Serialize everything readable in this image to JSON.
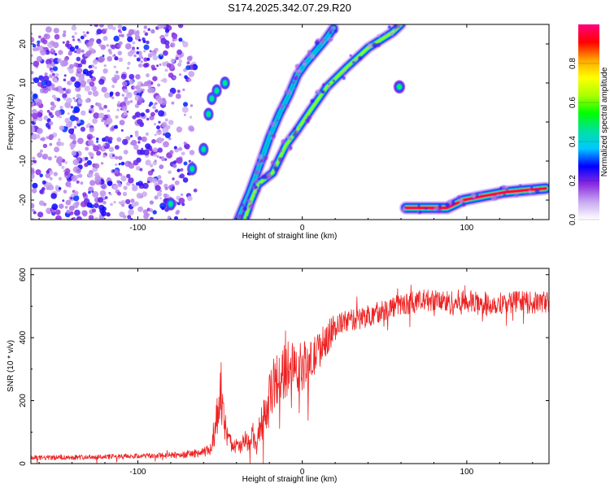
{
  "title": "S174.2025.342.07.29.R20",
  "chart_data": [
    {
      "type": "heatmap",
      "xlabel": "Height of straight line (km)",
      "ylabel": "Frequency (Hz)",
      "xlim": [
        -165,
        150
      ],
      "ylim": [
        -25,
        25
      ],
      "xticks": [
        -100,
        0,
        100
      ],
      "yticks": [
        -20,
        -10,
        0,
        10,
        20
      ],
      "xtick_labels": [
        "-100",
        "0",
        "100"
      ],
      "ytick_labels": [
        "-20",
        "-10",
        "0",
        "10",
        "20"
      ],
      "colorbar": {
        "label": "Normalized spectral amplitude",
        "range": [
          0.0,
          1.0
        ],
        "ticks": [
          0.0,
          0.2,
          0.4,
          0.6,
          0.8
        ],
        "tick_labels": [
          "0.0",
          "0.2",
          "0.4",
          "0.6",
          "0.8"
        ],
        "colors": [
          "#ffffff",
          "#c8aaf0",
          "#8a2be2",
          "#0000ff",
          "#00c8ff",
          "#00e0a0",
          "#00ff00",
          "#aaff00",
          "#ffff00",
          "#ffa500",
          "#ff0000",
          "#ff0080"
        ]
      },
      "features": [
        {
          "name": "noise-region",
          "x_range": [
            -165,
            -65
          ],
          "y_range": [
            -25,
            25
          ],
          "amplitude": 0.1
        },
        {
          "name": "mode-1",
          "points": [
            [
              -39,
              -25
            ],
            [
              -32,
              -18
            ],
            [
              -25,
              -10
            ],
            [
              -20,
              -4
            ],
            [
              -14,
              2
            ],
            [
              -8,
              7
            ],
            [
              -3,
              12
            ],
            [
              2,
              15
            ],
            [
              8,
              18
            ],
            [
              14,
              21
            ],
            [
              19,
              24
            ]
          ],
          "amplitude": 0.35
        },
        {
          "name": "mode-2",
          "points": [
            [
              -35,
              -25
            ],
            [
              -31,
              -20
            ],
            [
              -27,
              -16
            ],
            [
              -18,
              -13
            ],
            [
              -10,
              -6
            ],
            [
              -3,
              -2
            ],
            [
              5,
              3
            ],
            [
              15,
              9
            ],
            [
              27,
              14
            ],
            [
              40,
              19
            ],
            [
              55,
              23
            ],
            [
              60,
              25
            ]
          ],
          "amplitude": 0.6
        },
        {
          "name": "mode-3",
          "points": [
            [
              63,
              -22
            ],
            [
              75,
              -22
            ],
            [
              88,
              -22
            ],
            [
              98,
              -20
            ],
            [
              110,
              -19
            ],
            [
              123,
              -18
            ],
            [
              135,
              -17.5
            ],
            [
              148,
              -17
            ]
          ],
          "amplitude": 0.95
        },
        {
          "name": "spot",
          "points": [
            [
              59,
              9
            ]
          ],
          "amplitude": 0.5
        },
        {
          "name": "edge-blobs",
          "points": [
            [
              -80,
              -21
            ],
            [
              -67,
              -12
            ],
            [
              -60,
              -7
            ],
            [
              -57,
              2
            ],
            [
              -55,
              6
            ],
            [
              -52,
              8
            ],
            [
              -47,
              10
            ]
          ],
          "amplitude": 0.45
        }
      ]
    },
    {
      "type": "line",
      "xlabel": "Height of straight line (km)",
      "ylabel": "SNR (10 * v/v)",
      "xlim": [
        -165,
        150
      ],
      "ylim": [
        0,
        620
      ],
      "xticks": [
        -100,
        0,
        100
      ],
      "yticks": [
        0,
        200,
        400,
        600
      ],
      "xtick_labels": [
        "-100",
        "0",
        "100"
      ],
      "ytick_labels": [
        "0",
        "200",
        "400",
        "600"
      ],
      "series": [
        {
          "name": "SNR",
          "color": "#ee2222",
          "x": [
            -165,
            -140,
            -120,
            -100,
            -80,
            -70,
            -60,
            -55,
            -52,
            -50,
            -48,
            -46,
            -44,
            -42,
            -40,
            -38,
            -35,
            -32,
            -30,
            -28,
            -25,
            -22,
            -20,
            -18,
            -15,
            -12,
            -10,
            -8,
            -5,
            -2,
            0,
            5,
            10,
            15,
            20,
            25,
            30,
            40,
            50,
            60,
            70,
            80,
            90,
            100,
            110,
            120,
            130,
            140,
            150
          ],
          "values": [
            18,
            20,
            22,
            24,
            26,
            30,
            35,
            50,
            140,
            230,
            150,
            90,
            70,
            60,
            55,
            50,
            70,
            60,
            90,
            50,
            130,
            160,
            200,
            250,
            270,
            280,
            300,
            320,
            330,
            300,
            310,
            320,
            360,
            400,
            430,
            450,
            455,
            470,
            490,
            505,
            515,
            520,
            510,
            515,
            505,
            510,
            515,
            510,
            515
          ],
          "noise": [
            8,
            8,
            8,
            8,
            10,
            12,
            14,
            25,
            60,
            80,
            60,
            40,
            30,
            25,
            25,
            25,
            35,
            30,
            40,
            30,
            60,
            70,
            80,
            80,
            90,
            90,
            90,
            80,
            70,
            80,
            80,
            70,
            60,
            55,
            40,
            35,
            35,
            35,
            35,
            35,
            35,
            35,
            40,
            40,
            35,
            35,
            35,
            35,
            35
          ]
        }
      ]
    }
  ]
}
